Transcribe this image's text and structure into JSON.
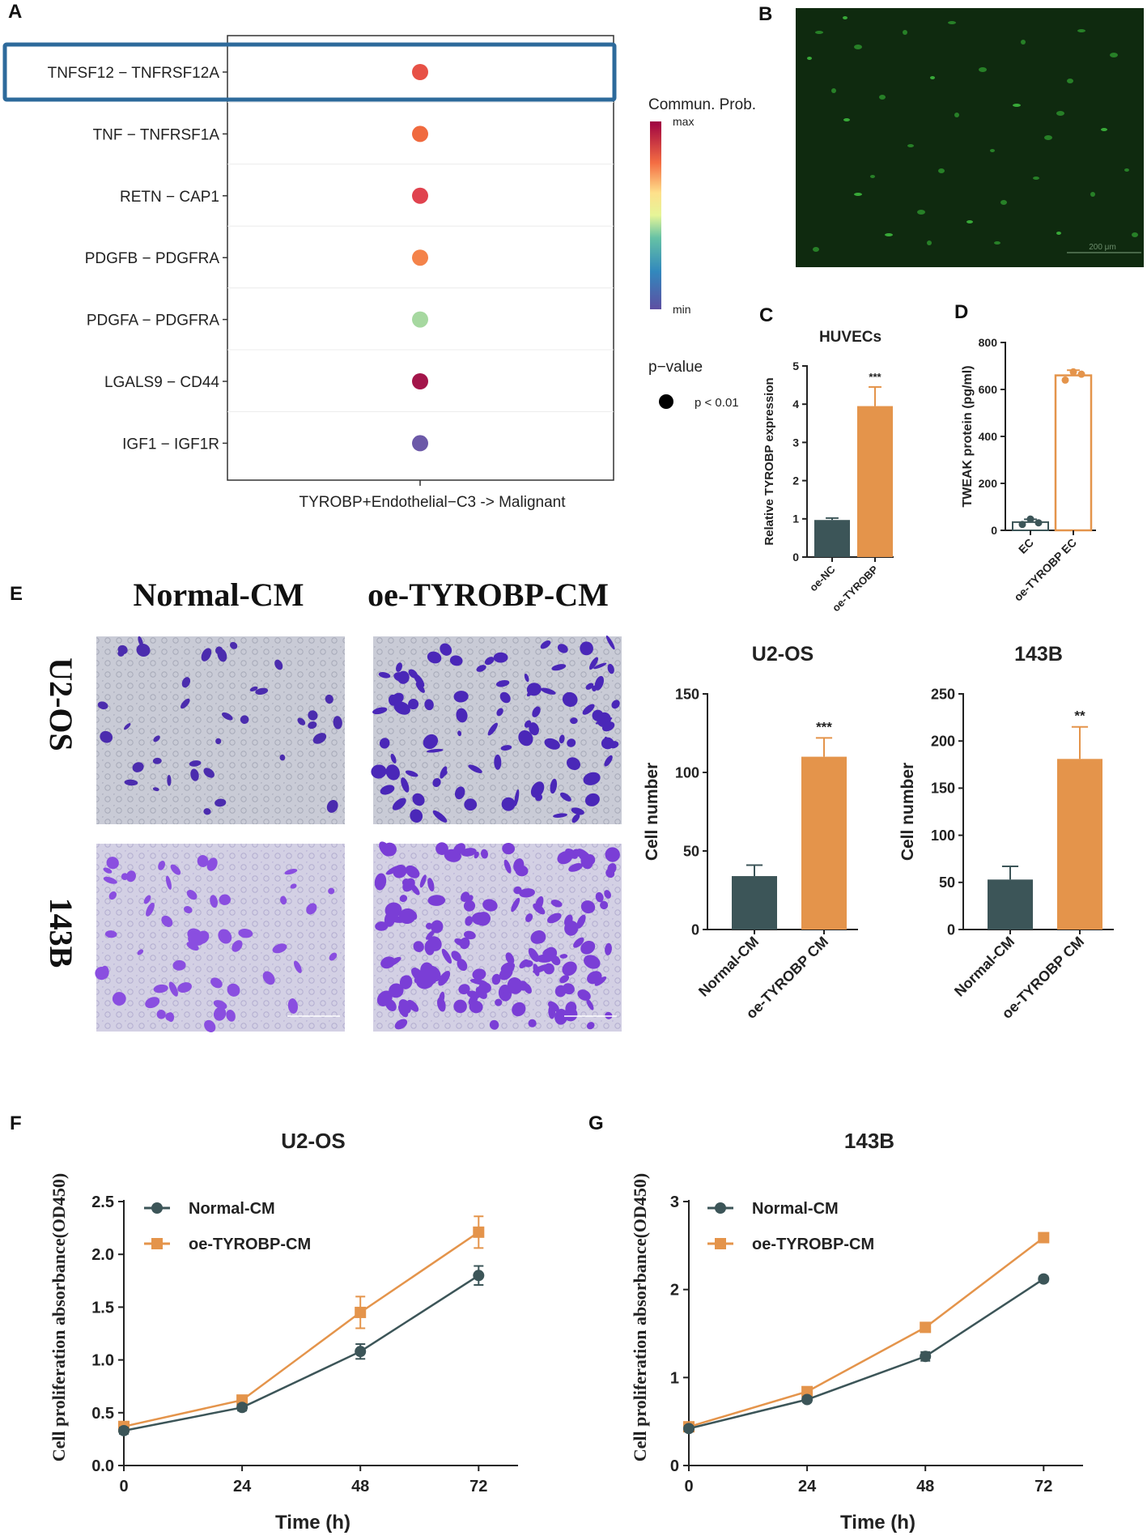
{
  "panels": {
    "A": "A",
    "B": "B",
    "C": "C",
    "D": "D",
    "E": "E",
    "F": "F",
    "G": "G"
  },
  "chart_data": [
    {
      "id": "A",
      "type": "scatter",
      "title": "",
      "xlabel": "TYROBP+Endothelial−C3 -> Malignant",
      "categories": [
        "TNFSF12 − TNFRSF12A",
        "TNF − TNFRSF1A",
        "RETN − CAP1",
        "PDGFB − PDGFRA",
        "PDGFA − PDGFRA",
        "LGALS9 − CD44",
        "IGF1 − IGF1R"
      ],
      "colors": [
        "#e75146",
        "#f06a3f",
        "#e0434f",
        "#f4834a",
        "#a6d8a0",
        "#a3154a",
        "#6c59a8"
      ],
      "legend": {
        "colorbar_title": "Commun. Prob.",
        "max": "max",
        "min": "min",
        "pvalue_title": "p−value",
        "pvalue_label": "p < 0.01"
      }
    },
    {
      "id": "C",
      "type": "bar",
      "title": "HUVECs",
      "ylabel": "Relative TYROBP expression",
      "categories": [
        "oe-NC",
        "oe-TYROBP"
      ],
      "values": [
        0.97,
        3.95
      ],
      "errors": [
        0.05,
        0.5
      ],
      "colors": [
        "#3c5558",
        "#e4944b"
      ],
      "ylim": [
        0,
        5
      ],
      "yticks": [
        0,
        1,
        2,
        3,
        4,
        5
      ],
      "significance": "***"
    },
    {
      "id": "D",
      "type": "bar",
      "title": "",
      "ylabel": "TWEAK protein (pg/ml)",
      "categories": [
        "EC",
        "oe-TYROBP EC"
      ],
      "values": [
        35,
        660
      ],
      "errors": [
        12,
        22
      ],
      "points": [
        [
          25,
          48,
          32
        ],
        [
          640,
          675,
          665
        ]
      ],
      "colors": [
        "#3c5558",
        "#e4944b"
      ],
      "ylim": [
        0,
        800
      ],
      "yticks": [
        0,
        200,
        400,
        600,
        800
      ]
    },
    {
      "id": "E1",
      "type": "bar",
      "title": "U2-OS",
      "ylabel": "Cell number",
      "categories": [
        "Normal-CM",
        "oe-TYROBP CM"
      ],
      "values": [
        34,
        110
      ],
      "errors": [
        7,
        12
      ],
      "colors": [
        "#3c5558",
        "#e4944b"
      ],
      "ylim": [
        0,
        150
      ],
      "yticks": [
        0,
        50,
        100,
        150
      ],
      "significance": "***"
    },
    {
      "id": "E2",
      "type": "bar",
      "title": "143B",
      "ylabel": "Cell number",
      "categories": [
        "Normal-CM",
        "oe-TYROBP CM"
      ],
      "values": [
        53,
        181
      ],
      "errors": [
        14,
        34
      ],
      "colors": [
        "#3c5558",
        "#e4944b"
      ],
      "ylim": [
        0,
        250
      ],
      "yticks": [
        0,
        50,
        100,
        150,
        200,
        250
      ],
      "significance": "**"
    },
    {
      "id": "F",
      "type": "line",
      "title": "U2-OS",
      "xlabel": "Time (h)",
      "ylabel": "Cell proliferation absorbance(OD450)",
      "x": [
        0,
        24,
        48,
        72
      ],
      "xlim": [
        0,
        80
      ],
      "ylim": [
        0,
        2.5
      ],
      "yticks": [
        0.0,
        0.5,
        1.0,
        1.5,
        2.0,
        2.5
      ],
      "ytick_labels": [
        "0.0",
        "0.5",
        "1.0",
        "1.5",
        "2.0",
        "2.5"
      ],
      "series": [
        {
          "name": "Normal-CM",
          "values": [
            0.33,
            0.55,
            1.08,
            1.8
          ],
          "errors": [
            0.03,
            0.03,
            0.07,
            0.09
          ],
          "color": "#3c5558",
          "marker": "circle"
        },
        {
          "name": "oe-TYROBP-CM",
          "values": [
            0.37,
            0.62,
            1.45,
            2.21
          ],
          "errors": [
            0.03,
            0.03,
            0.15,
            0.15
          ],
          "color": "#e4944b",
          "marker": "square"
        }
      ]
    },
    {
      "id": "G",
      "type": "line",
      "title": "143B",
      "xlabel": "Time (h)",
      "ylabel": "Cell proliferation absorbance(OD450)",
      "x": [
        0,
        24,
        48,
        72
      ],
      "xlim": [
        0,
        80
      ],
      "ylim": [
        0,
        3
      ],
      "yticks": [
        0,
        1,
        2,
        3
      ],
      "ytick_labels": [
        "0",
        "1",
        "2",
        "3"
      ],
      "series": [
        {
          "name": "Normal-CM",
          "values": [
            0.42,
            0.75,
            1.24,
            2.12
          ],
          "errors": [
            0.03,
            0.03,
            0.05,
            0.03
          ],
          "color": "#3c5558",
          "marker": "circle"
        },
        {
          "name": "oe-TYROBP-CM",
          "values": [
            0.44,
            0.84,
            1.57,
            2.59
          ],
          "errors": [
            0.02,
            0.03,
            0.03,
            0.03
          ],
          "color": "#e4944b",
          "marker": "square"
        }
      ]
    }
  ],
  "micrographs": {
    "col_normal": "Normal-CM",
    "col_oe": "oe-TYROBP-CM",
    "row_u2os": "U2-OS",
    "row_143b": "143B",
    "scale_bar": "200 μm"
  }
}
